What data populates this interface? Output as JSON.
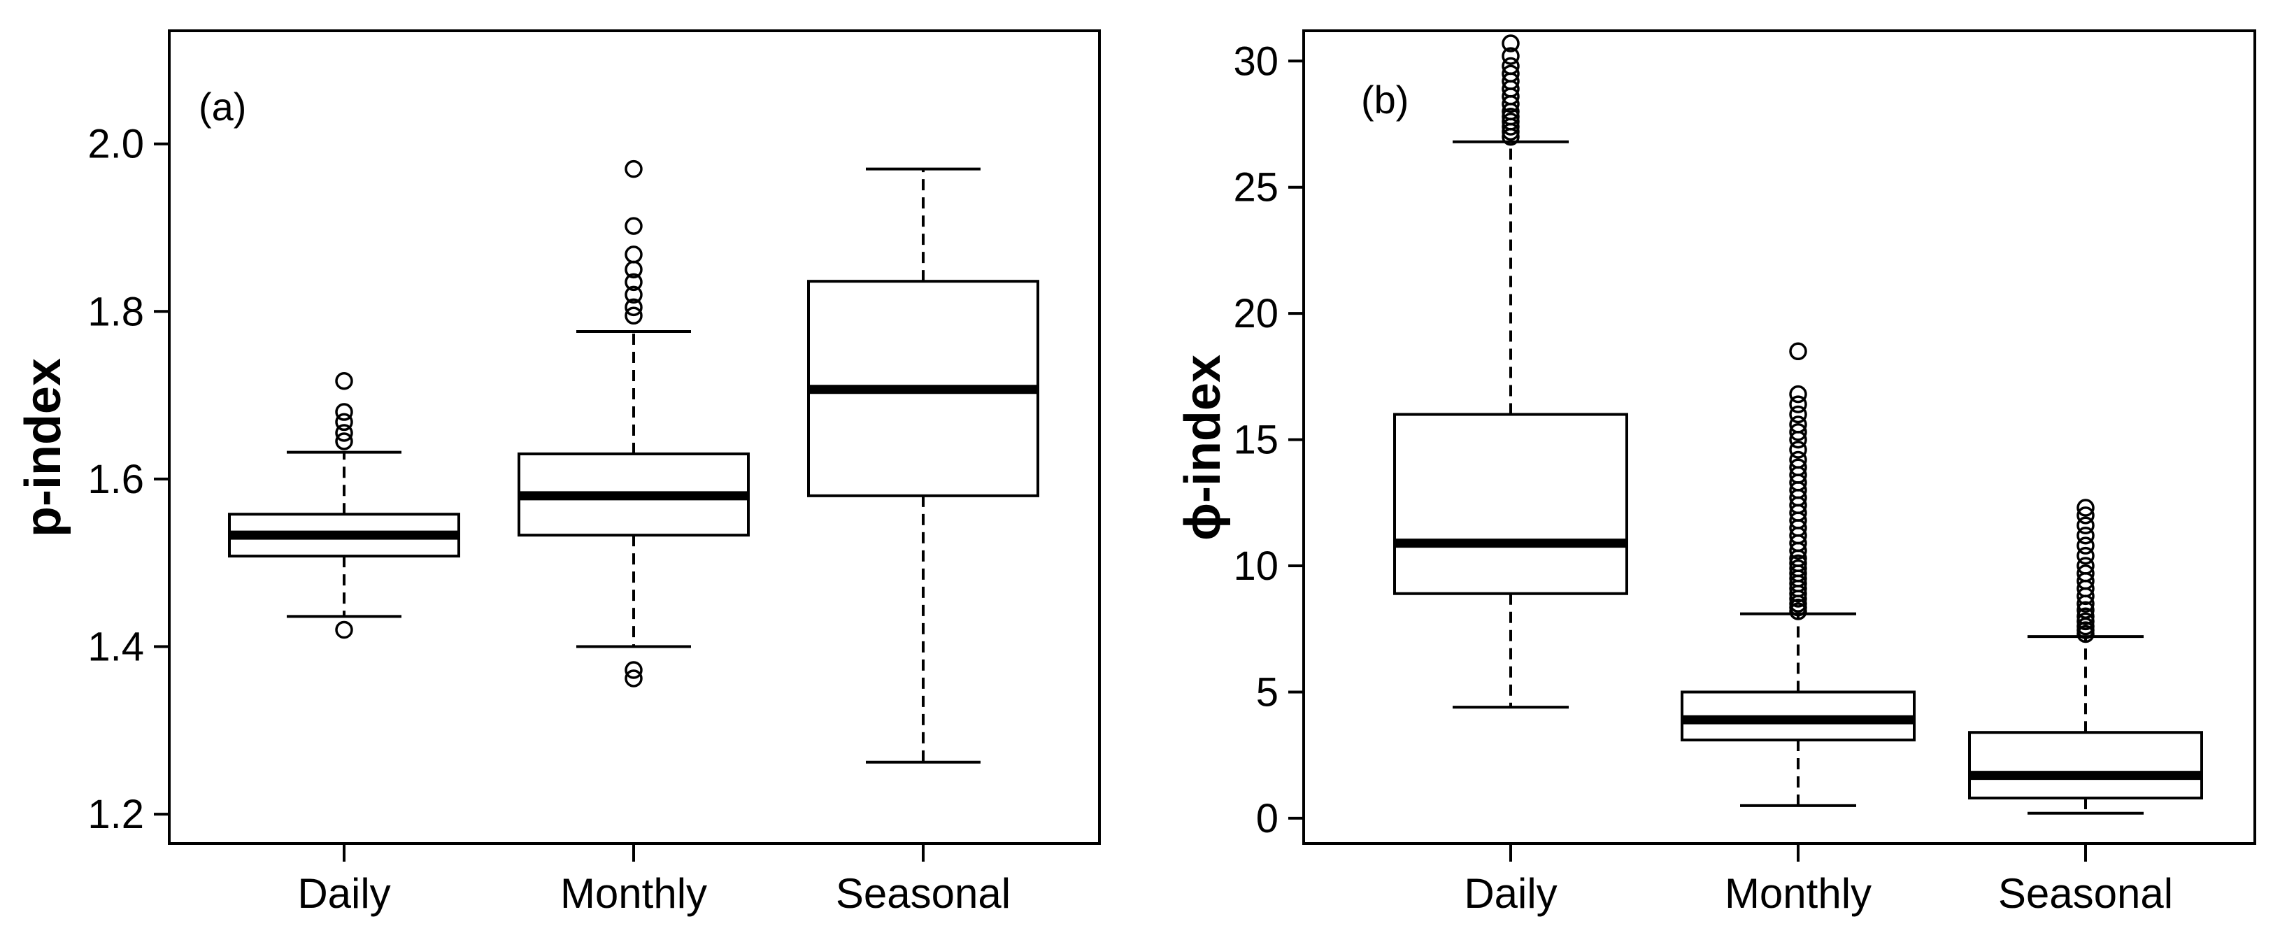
{
  "chart_data": [
    {
      "type": "boxplot",
      "panel_label": "(a)",
      "ylabel": "p-index",
      "ylim": [
        1.165,
        2.135
      ],
      "yticks": [
        1.2,
        1.4,
        1.6,
        1.8,
        2.0
      ],
      "ytick_labels": [
        "1.2",
        "1.4",
        "1.6",
        "1.8",
        "2.0"
      ],
      "categories": [
        "Daily",
        "Monthly",
        "Seasonal"
      ],
      "boxes": [
        {
          "name": "Daily",
          "whisker_low": 1.436,
          "q1": 1.508,
          "median": 1.533,
          "q3": 1.558,
          "whisker_high": 1.632,
          "outliers": [
            1.42,
            1.645,
            1.655,
            1.668,
            1.68,
            1.717
          ]
        },
        {
          "name": "Monthly",
          "whisker_low": 1.4,
          "q1": 1.533,
          "median": 1.58,
          "q3": 1.63,
          "whisker_high": 1.776,
          "outliers": [
            1.362,
            1.372,
            1.795,
            1.805,
            1.82,
            1.835,
            1.85,
            1.868,
            1.902,
            1.97
          ]
        },
        {
          "name": "Seasonal",
          "whisker_low": 1.262,
          "q1": 1.58,
          "median": 1.707,
          "q3": 1.836,
          "whisker_high": 1.97,
          "outliers": []
        }
      ]
    },
    {
      "type": "boxplot",
      "panel_label": "(b)",
      "ylabel": "ϕ-index",
      "ylim": [
        -1.0,
        31.2
      ],
      "yticks": [
        0,
        5,
        10,
        15,
        20,
        25,
        30
      ],
      "ytick_labels": [
        "0",
        "5",
        "10",
        "15",
        "20",
        "25",
        "30"
      ],
      "categories": [
        "Daily",
        "Monthly",
        "Seasonal"
      ],
      "boxes": [
        {
          "name": "Daily",
          "whisker_low": 4.4,
          "q1": 8.9,
          "median": 10.9,
          "q3": 16.0,
          "whisker_high": 26.8,
          "outliers": [
            27.0,
            27.2,
            27.4,
            27.6,
            27.8,
            28.0,
            28.3,
            28.6,
            28.9,
            29.2,
            29.5,
            29.8,
            30.2,
            30.7
          ]
        },
        {
          "name": "Monthly",
          "whisker_low": 0.5,
          "q1": 3.1,
          "median": 3.9,
          "q3": 5.0,
          "whisker_high": 8.1,
          "outliers": [
            8.2,
            8.35,
            8.5,
            8.7,
            8.9,
            9.1,
            9.3,
            9.5,
            9.7,
            9.9,
            10.1,
            10.3,
            10.6,
            10.9,
            11.2,
            11.5,
            11.8,
            12.1,
            12.4,
            12.7,
            13.0,
            13.3,
            13.6,
            13.9,
            14.2,
            14.6,
            15.0,
            15.3,
            15.6,
            16.0,
            16.4,
            16.8,
            18.5
          ]
        },
        {
          "name": "Seasonal",
          "whisker_low": 0.2,
          "q1": 0.8,
          "median": 1.7,
          "q3": 3.4,
          "whisker_high": 7.2,
          "outliers": [
            7.3,
            7.45,
            7.6,
            7.8,
            8.0,
            8.25,
            8.5,
            8.8,
            9.1,
            9.4,
            9.7,
            10.0,
            10.4,
            10.8,
            11.2,
            11.6,
            12.0,
            12.3
          ]
        }
      ]
    }
  ]
}
